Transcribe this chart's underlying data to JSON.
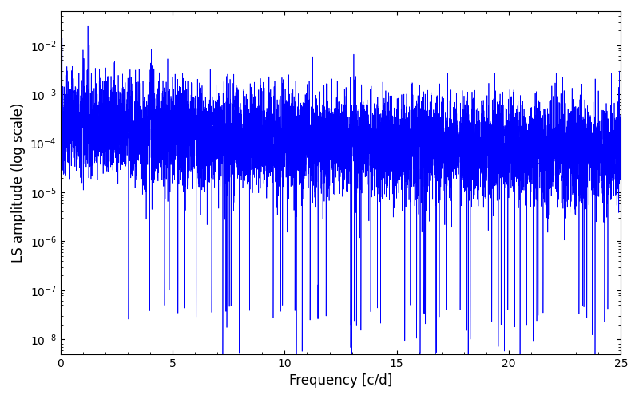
{
  "title": "",
  "xlabel": "Frequency [c/d]",
  "ylabel": "LS amplitude (log scale)",
  "xlim": [
    0,
    25
  ],
  "ylim": [
    5e-09,
    0.05
  ],
  "line_color": "#0000ff",
  "line_width": 0.5,
  "background_color": "#ffffff",
  "figsize": [
    8.0,
    5.0
  ],
  "dpi": 100,
  "seed": 12345,
  "n_points": 8000,
  "freq_max": 25.0
}
